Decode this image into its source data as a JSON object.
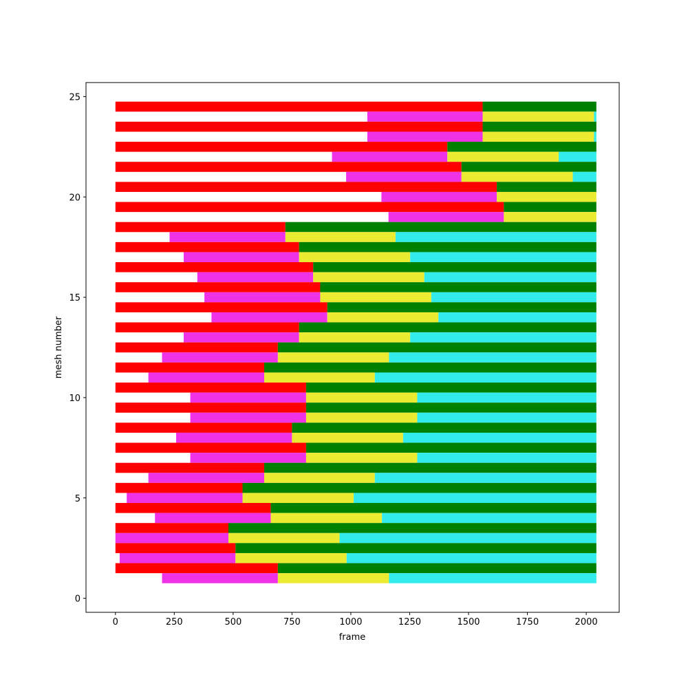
{
  "chart_data": {
    "type": "bar",
    "orientation": "horizontal-stacked-timeline",
    "title": "",
    "xlabel": "frame",
    "ylabel": "mesh number",
    "xlim": [
      -125,
      2140
    ],
    "ylim": [
      -0.7,
      25.7
    ],
    "xticks": [
      0,
      250,
      500,
      750,
      1000,
      1250,
      1500,
      1750,
      2000
    ],
    "yticks": [
      0,
      5,
      10,
      15,
      20,
      25
    ],
    "grid": false,
    "legend": "none",
    "segment_colors": {
      "red": "#ff0000",
      "magenta": "#f032e6",
      "yellow": "#ebeb32",
      "green": "#008000",
      "cyan": "#32ebeb"
    },
    "rows": [
      {
        "y": 24.5,
        "segments": [
          {
            "color": "red",
            "start": 0,
            "end": 1560
          },
          {
            "color": "green",
            "start": 1560,
            "end": 2043
          }
        ]
      },
      {
        "y": 24.0,
        "segments": [
          {
            "color": "magenta",
            "start": 1070,
            "end": 1560
          },
          {
            "color": "yellow",
            "start": 1560,
            "end": 2033
          },
          {
            "color": "cyan",
            "start": 2033,
            "end": 2043
          }
        ]
      },
      {
        "y": 23.5,
        "segments": [
          {
            "color": "red",
            "start": 0,
            "end": 1560
          },
          {
            "color": "green",
            "start": 1560,
            "end": 2043
          }
        ]
      },
      {
        "y": 23.0,
        "segments": [
          {
            "color": "magenta",
            "start": 1070,
            "end": 1560
          },
          {
            "color": "yellow",
            "start": 1560,
            "end": 2033
          },
          {
            "color": "cyan",
            "start": 2033,
            "end": 2043
          }
        ]
      },
      {
        "y": 22.5,
        "segments": [
          {
            "color": "red",
            "start": 0,
            "end": 1410
          },
          {
            "color": "green",
            "start": 1410,
            "end": 2043
          }
        ]
      },
      {
        "y": 22.0,
        "segments": [
          {
            "color": "magenta",
            "start": 920,
            "end": 1410
          },
          {
            "color": "yellow",
            "start": 1410,
            "end": 1883
          },
          {
            "color": "cyan",
            "start": 1883,
            "end": 2043
          }
        ]
      },
      {
        "y": 21.5,
        "segments": [
          {
            "color": "red",
            "start": 0,
            "end": 1470
          },
          {
            "color": "green",
            "start": 1470,
            "end": 2043
          }
        ]
      },
      {
        "y": 21.0,
        "segments": [
          {
            "color": "magenta",
            "start": 980,
            "end": 1470
          },
          {
            "color": "yellow",
            "start": 1470,
            "end": 1943
          },
          {
            "color": "cyan",
            "start": 1943,
            "end": 2043
          }
        ]
      },
      {
        "y": 20.5,
        "segments": [
          {
            "color": "red",
            "start": 0,
            "end": 1620
          },
          {
            "color": "green",
            "start": 1620,
            "end": 2043
          }
        ]
      },
      {
        "y": 20.0,
        "segments": [
          {
            "color": "magenta",
            "start": 1130,
            "end": 1620
          },
          {
            "color": "yellow",
            "start": 1620,
            "end": 2043
          }
        ]
      },
      {
        "y": 19.5,
        "segments": [
          {
            "color": "red",
            "start": 0,
            "end": 1650
          },
          {
            "color": "green",
            "start": 1650,
            "end": 2043
          }
        ]
      },
      {
        "y": 19.0,
        "segments": [
          {
            "color": "magenta",
            "start": 1160,
            "end": 1650
          },
          {
            "color": "yellow",
            "start": 1650,
            "end": 2043
          }
        ]
      },
      {
        "y": 18.5,
        "segments": [
          {
            "color": "red",
            "start": 0,
            "end": 722
          },
          {
            "color": "green",
            "start": 722,
            "end": 2043
          }
        ]
      },
      {
        "y": 18.0,
        "segments": [
          {
            "color": "magenta",
            "start": 230,
            "end": 722
          },
          {
            "color": "yellow",
            "start": 722,
            "end": 1190
          },
          {
            "color": "cyan",
            "start": 1190,
            "end": 2043
          }
        ]
      },
      {
        "y": 17.5,
        "segments": [
          {
            "color": "red",
            "start": 0,
            "end": 780
          },
          {
            "color": "green",
            "start": 780,
            "end": 2043
          }
        ]
      },
      {
        "y": 17.0,
        "segments": [
          {
            "color": "magenta",
            "start": 290,
            "end": 780
          },
          {
            "color": "yellow",
            "start": 780,
            "end": 1252
          },
          {
            "color": "cyan",
            "start": 1252,
            "end": 2043
          }
        ]
      },
      {
        "y": 16.5,
        "segments": [
          {
            "color": "red",
            "start": 0,
            "end": 840
          },
          {
            "color": "green",
            "start": 840,
            "end": 2043
          }
        ]
      },
      {
        "y": 16.0,
        "segments": [
          {
            "color": "magenta",
            "start": 348,
            "end": 840
          },
          {
            "color": "yellow",
            "start": 840,
            "end": 1312
          },
          {
            "color": "cyan",
            "start": 1312,
            "end": 2043
          }
        ]
      },
      {
        "y": 15.5,
        "segments": [
          {
            "color": "red",
            "start": 0,
            "end": 870
          },
          {
            "color": "green",
            "start": 870,
            "end": 2043
          }
        ]
      },
      {
        "y": 15.0,
        "segments": [
          {
            "color": "magenta",
            "start": 378,
            "end": 870
          },
          {
            "color": "yellow",
            "start": 870,
            "end": 1342
          },
          {
            "color": "cyan",
            "start": 1342,
            "end": 2043
          }
        ]
      },
      {
        "y": 14.5,
        "segments": [
          {
            "color": "red",
            "start": 0,
            "end": 900
          },
          {
            "color": "green",
            "start": 900,
            "end": 2043
          }
        ]
      },
      {
        "y": 14.0,
        "segments": [
          {
            "color": "magenta",
            "start": 408,
            "end": 900
          },
          {
            "color": "yellow",
            "start": 900,
            "end": 1372
          },
          {
            "color": "cyan",
            "start": 1372,
            "end": 2043
          }
        ]
      },
      {
        "y": 13.5,
        "segments": [
          {
            "color": "red",
            "start": 0,
            "end": 780
          },
          {
            "color": "green",
            "start": 780,
            "end": 2043
          }
        ]
      },
      {
        "y": 13.0,
        "segments": [
          {
            "color": "magenta",
            "start": 290,
            "end": 780
          },
          {
            "color": "yellow",
            "start": 780,
            "end": 1252
          },
          {
            "color": "cyan",
            "start": 1252,
            "end": 2043
          }
        ]
      },
      {
        "y": 12.5,
        "segments": [
          {
            "color": "red",
            "start": 0,
            "end": 690
          },
          {
            "color": "green",
            "start": 690,
            "end": 2043
          }
        ]
      },
      {
        "y": 12.0,
        "segments": [
          {
            "color": "magenta",
            "start": 198,
            "end": 690
          },
          {
            "color": "yellow",
            "start": 690,
            "end": 1162
          },
          {
            "color": "cyan",
            "start": 1162,
            "end": 2043
          }
        ]
      },
      {
        "y": 11.5,
        "segments": [
          {
            "color": "red",
            "start": 0,
            "end": 632
          },
          {
            "color": "green",
            "start": 632,
            "end": 2043
          }
        ]
      },
      {
        "y": 11.0,
        "segments": [
          {
            "color": "magenta",
            "start": 140,
            "end": 632
          },
          {
            "color": "yellow",
            "start": 632,
            "end": 1102
          },
          {
            "color": "cyan",
            "start": 1102,
            "end": 2043
          }
        ]
      },
      {
        "y": 10.5,
        "segments": [
          {
            "color": "red",
            "start": 0,
            "end": 810
          },
          {
            "color": "green",
            "start": 810,
            "end": 2043
          }
        ]
      },
      {
        "y": 10.0,
        "segments": [
          {
            "color": "magenta",
            "start": 318,
            "end": 810
          },
          {
            "color": "yellow",
            "start": 810,
            "end": 1282
          },
          {
            "color": "cyan",
            "start": 1282,
            "end": 2043
          }
        ]
      },
      {
        "y": 9.5,
        "segments": [
          {
            "color": "red",
            "start": 0,
            "end": 810
          },
          {
            "color": "green",
            "start": 810,
            "end": 2043
          }
        ]
      },
      {
        "y": 9.0,
        "segments": [
          {
            "color": "magenta",
            "start": 318,
            "end": 810
          },
          {
            "color": "yellow",
            "start": 810,
            "end": 1282
          },
          {
            "color": "cyan",
            "start": 1282,
            "end": 2043
          }
        ]
      },
      {
        "y": 8.5,
        "segments": [
          {
            "color": "red",
            "start": 0,
            "end": 750
          },
          {
            "color": "green",
            "start": 750,
            "end": 2043
          }
        ]
      },
      {
        "y": 8.0,
        "segments": [
          {
            "color": "magenta",
            "start": 258,
            "end": 750
          },
          {
            "color": "yellow",
            "start": 750,
            "end": 1222
          },
          {
            "color": "cyan",
            "start": 1222,
            "end": 2043
          }
        ]
      },
      {
        "y": 7.5,
        "segments": [
          {
            "color": "red",
            "start": 0,
            "end": 810
          },
          {
            "color": "green",
            "start": 810,
            "end": 2043
          }
        ]
      },
      {
        "y": 7.0,
        "segments": [
          {
            "color": "magenta",
            "start": 318,
            "end": 810
          },
          {
            "color": "yellow",
            "start": 810,
            "end": 1282
          },
          {
            "color": "cyan",
            "start": 1282,
            "end": 2043
          }
        ]
      },
      {
        "y": 6.5,
        "segments": [
          {
            "color": "red",
            "start": 0,
            "end": 632
          },
          {
            "color": "green",
            "start": 632,
            "end": 2043
          }
        ]
      },
      {
        "y": 6.0,
        "segments": [
          {
            "color": "magenta",
            "start": 140,
            "end": 632
          },
          {
            "color": "yellow",
            "start": 632,
            "end": 1102
          },
          {
            "color": "cyan",
            "start": 1102,
            "end": 2043
          }
        ]
      },
      {
        "y": 5.5,
        "segments": [
          {
            "color": "red",
            "start": 0,
            "end": 540
          },
          {
            "color": "green",
            "start": 540,
            "end": 2043
          }
        ]
      },
      {
        "y": 5.0,
        "segments": [
          {
            "color": "magenta",
            "start": 48,
            "end": 540
          },
          {
            "color": "yellow",
            "start": 540,
            "end": 1012
          },
          {
            "color": "cyan",
            "start": 1012,
            "end": 2043
          }
        ]
      },
      {
        "y": 4.5,
        "segments": [
          {
            "color": "red",
            "start": 0,
            "end": 660
          },
          {
            "color": "green",
            "start": 660,
            "end": 2043
          }
        ]
      },
      {
        "y": 4.0,
        "segments": [
          {
            "color": "magenta",
            "start": 168,
            "end": 660
          },
          {
            "color": "yellow",
            "start": 660,
            "end": 1132
          },
          {
            "color": "cyan",
            "start": 1132,
            "end": 2043
          }
        ]
      },
      {
        "y": 3.5,
        "segments": [
          {
            "color": "red",
            "start": 0,
            "end": 480
          },
          {
            "color": "green",
            "start": 480,
            "end": 2043
          }
        ]
      },
      {
        "y": 3.0,
        "segments": [
          {
            "color": "magenta",
            "start": 0,
            "end": 480
          },
          {
            "color": "yellow",
            "start": 480,
            "end": 952
          },
          {
            "color": "cyan",
            "start": 952,
            "end": 2043
          }
        ]
      },
      {
        "y": 2.5,
        "segments": [
          {
            "color": "red",
            "start": 0,
            "end": 510
          },
          {
            "color": "green",
            "start": 510,
            "end": 2043
          }
        ]
      },
      {
        "y": 2.0,
        "segments": [
          {
            "color": "magenta",
            "start": 18,
            "end": 510
          },
          {
            "color": "yellow",
            "start": 510,
            "end": 982
          },
          {
            "color": "cyan",
            "start": 982,
            "end": 2043
          }
        ]
      },
      {
        "y": 1.5,
        "segments": [
          {
            "color": "red",
            "start": 0,
            "end": 690
          },
          {
            "color": "green",
            "start": 690,
            "end": 2043
          }
        ]
      },
      {
        "y": 1.0,
        "segments": [
          {
            "color": "magenta",
            "start": 198,
            "end": 690
          },
          {
            "color": "yellow",
            "start": 690,
            "end": 1162
          },
          {
            "color": "cyan",
            "start": 1162,
            "end": 2043
          }
        ]
      }
    ]
  }
}
